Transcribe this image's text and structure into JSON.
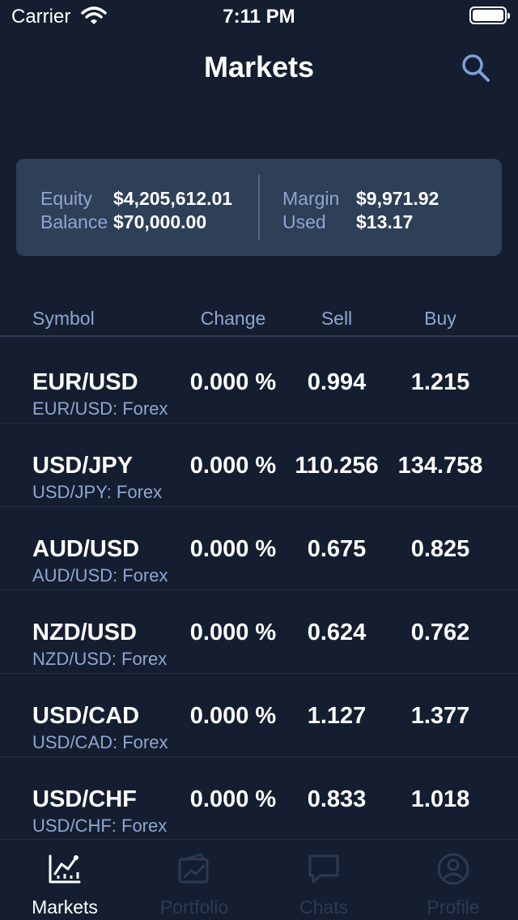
{
  "status_bar": {
    "carrier": "Carrier",
    "time": "7:11 PM"
  },
  "nav": {
    "title": "Markets",
    "search_icon": "search-icon"
  },
  "account": {
    "equity_label": "Equity",
    "equity_value": "$4,205,612.01",
    "balance_label": "Balance",
    "balance_value": "$70,000.00",
    "margin_label": "Margin",
    "margin_value": "$9,971.92",
    "used_label": "Used",
    "used_value": "$13.17"
  },
  "table": {
    "headers": {
      "symbol": "Symbol",
      "change": "Change",
      "sell": "Sell",
      "buy": "Buy"
    },
    "rows": [
      {
        "symbol": "EUR/USD",
        "subtitle": "EUR/USD: Forex",
        "change": "0.000 %",
        "sell": "0.994",
        "buy": "1.215"
      },
      {
        "symbol": "USD/JPY",
        "subtitle": "USD/JPY: Forex",
        "change": "0.000 %",
        "sell": "110.256",
        "buy": "134.758"
      },
      {
        "symbol": "AUD/USD",
        "subtitle": "AUD/USD: Forex",
        "change": "0.000 %",
        "sell": "0.675",
        "buy": "0.825"
      },
      {
        "symbol": "NZD/USD",
        "subtitle": "NZD/USD: Forex",
        "change": "0.000 %",
        "sell": "0.624",
        "buy": "0.762"
      },
      {
        "symbol": "USD/CAD",
        "subtitle": "USD/CAD: Forex",
        "change": "0.000 %",
        "sell": "1.127",
        "buy": "1.377"
      },
      {
        "symbol": "USD/CHF",
        "subtitle": "USD/CHF: Forex",
        "change": "0.000 %",
        "sell": "0.833",
        "buy": "1.018"
      }
    ]
  },
  "tabs": [
    {
      "label": "Markets",
      "icon": "chart-icon",
      "active": true
    },
    {
      "label": "Portfolio",
      "icon": "portfolio-icon",
      "active": false
    },
    {
      "label": "Chats",
      "icon": "chat-bubble-icon",
      "active": false
    },
    {
      "label": "Profile",
      "icon": "user-icon",
      "active": false
    }
  ],
  "colors": {
    "background": "#141e30",
    "card": "#2e3f58",
    "muted_text": "#8fa6cf",
    "accent": "#7fa0d8",
    "inactive_tab": "#2b3a54"
  }
}
